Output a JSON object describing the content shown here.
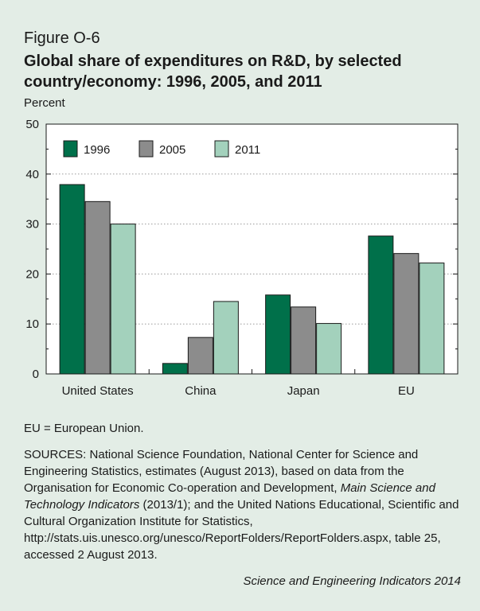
{
  "figure_label": "Figure O-6",
  "title": "Global share of expenditures on R&D, by selected country/economy: 1996, 2005, and 2011",
  "notes": {
    "abbreviation": "EU = European Union.",
    "sources_pre": "SOURCES: National Science Foundation, National Center for Science and Engineering Statistics, estimates (August 2013), based on data from the Organisation for Economic Co-operation and Development, ",
    "sources_italic": "Main Science and Technology Indicators",
    "sources_post": " (2013/1); and the United Nations Educational, Scientific and Cultural Organization Institute for Statistics, http://stats.uis.unesco.org/unesco/ReportFolders/ReportFolders.aspx, table 25, accessed 2 August 2013."
  },
  "credit": "Science and Engineering Indicators 2014",
  "colors": {
    "1996": "#00704a",
    "2005": "#8c8c8c",
    "2011": "#a3d1bc"
  },
  "chart_data": {
    "type": "bar",
    "title": "Global share of expenditures on R&D, by selected country/economy: 1996, 2005, and 2011",
    "ylabel": "Percent",
    "xlabel": "",
    "categories": [
      "United States",
      "China",
      "Japan",
      "EU"
    ],
    "series": [
      {
        "name": "1996",
        "values": [
          37.9,
          2.1,
          15.8,
          27.6
        ]
      },
      {
        "name": "2005",
        "values": [
          34.5,
          7.3,
          13.4,
          24.1
        ]
      },
      {
        "name": "2011",
        "values": [
          30.0,
          14.5,
          10.1,
          22.2
        ]
      }
    ],
    "ylim": [
      0,
      50
    ],
    "yticks": [
      0,
      10,
      20,
      30,
      40,
      50
    ],
    "grid": true,
    "legend_position": "top-left"
  }
}
